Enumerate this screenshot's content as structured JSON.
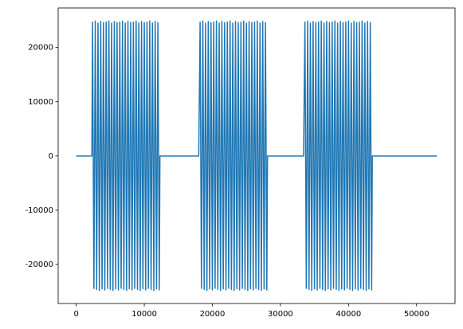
{
  "chart_data": {
    "type": "line",
    "x": [
      0,
      2300,
      2400,
      2600,
      2800,
      3000,
      3200,
      3400,
      3600,
      3800,
      4000,
      4200,
      4400,
      4600,
      4800,
      5000,
      5200,
      5400,
      5600,
      5800,
      6000,
      6200,
      6400,
      6600,
      6800,
      7000,
      7200,
      7400,
      7600,
      7800,
      8000,
      8200,
      8400,
      8600,
      8800,
      9000,
      9200,
      9400,
      9600,
      9800,
      10000,
      10200,
      10400,
      10600,
      10800,
      11000,
      11200,
      11400,
      11600,
      11800,
      12000,
      12200,
      12300,
      18000,
      18200,
      18400,
      18600,
      18800,
      19000,
      19200,
      19400,
      19600,
      19800,
      20000,
      20200,
      20400,
      20600,
      20800,
      21000,
      21200,
      21400,
      21600,
      21800,
      22000,
      22200,
      22400,
      22600,
      22800,
      23000,
      23200,
      23400,
      23600,
      23800,
      24000,
      24200,
      24400,
      24600,
      24800,
      25000,
      25200,
      25400,
      25600,
      25800,
      26000,
      26200,
      26400,
      26600,
      26800,
      27000,
      27200,
      27400,
      27600,
      27800,
      28000,
      28100,
      33400,
      33600,
      33800,
      34000,
      34200,
      34400,
      34600,
      34800,
      35000,
      35200,
      35400,
      35600,
      35800,
      36000,
      36200,
      36400,
      36600,
      36800,
      37000,
      37200,
      37400,
      37600,
      37800,
      38000,
      38200,
      38400,
      38600,
      38800,
      39000,
      39200,
      39400,
      39600,
      39800,
      40000,
      40200,
      40400,
      40600,
      40800,
      41000,
      41200,
      41400,
      41600,
      41800,
      42000,
      42200,
      42400,
      42600,
      42800,
      43000,
      43200,
      43400,
      43500,
      53000
    ],
    "series": [
      {
        "color": "#1f77b4",
        "values": [
          0,
          0,
          24700,
          -24400,
          24900,
          -24600,
          24500,
          -24800,
          24800,
          -24500,
          24600,
          -24700,
          24700,
          -24400,
          24900,
          -24600,
          24500,
          -24800,
          24800,
          -24500,
          24600,
          -24700,
          24700,
          -24400,
          24900,
          -24600,
          24500,
          -24800,
          24800,
          -24500,
          24600,
          -24700,
          24700,
          -24400,
          24900,
          -24600,
          24500,
          -24800,
          24800,
          -24500,
          24600,
          -24700,
          24700,
          -24400,
          24900,
          -24600,
          24500,
          -24800,
          24800,
          -24500,
          24600,
          -24700,
          0,
          0,
          24700,
          -24400,
          24900,
          -24600,
          24500,
          -24800,
          24800,
          -24500,
          24600,
          -24700,
          24700,
          -24400,
          24900,
          -24600,
          24500,
          -24800,
          24800,
          -24500,
          24600,
          -24700,
          24700,
          -24400,
          24900,
          -24600,
          24500,
          -24800,
          24800,
          -24500,
          24600,
          -24700,
          24700,
          -24400,
          24900,
          -24600,
          24500,
          -24800,
          24800,
          -24500,
          24600,
          -24700,
          24700,
          -24400,
          24900,
          -24600,
          24500,
          -24800,
          24800,
          -24500,
          24600,
          -24700,
          0,
          0,
          24700,
          -24400,
          24900,
          -24600,
          24500,
          -24800,
          24800,
          -24500,
          24600,
          -24700,
          24700,
          -24400,
          24900,
          -24600,
          24500,
          -24800,
          24800,
          -24500,
          24600,
          -24700,
          24700,
          -24400,
          24900,
          -24600,
          24500,
          -24800,
          24800,
          -24500,
          24600,
          -24700,
          24700,
          -24400,
          24900,
          -24600,
          24500,
          -24800,
          24800,
          -24500,
          24600,
          -24700,
          24700,
          -24400,
          24900,
          -24600,
          24500,
          -24800,
          24800,
          -24500,
          24600,
          -24700,
          0,
          0
        ]
      }
    ],
    "xlim": [
      -2650,
      55650
    ],
    "ylim": [
      -27200,
      27300
    ],
    "xticks": [
      0,
      10000,
      20000,
      30000,
      40000,
      50000
    ],
    "yticks": [
      -20000,
      -10000,
      0,
      10000,
      20000
    ]
  }
}
